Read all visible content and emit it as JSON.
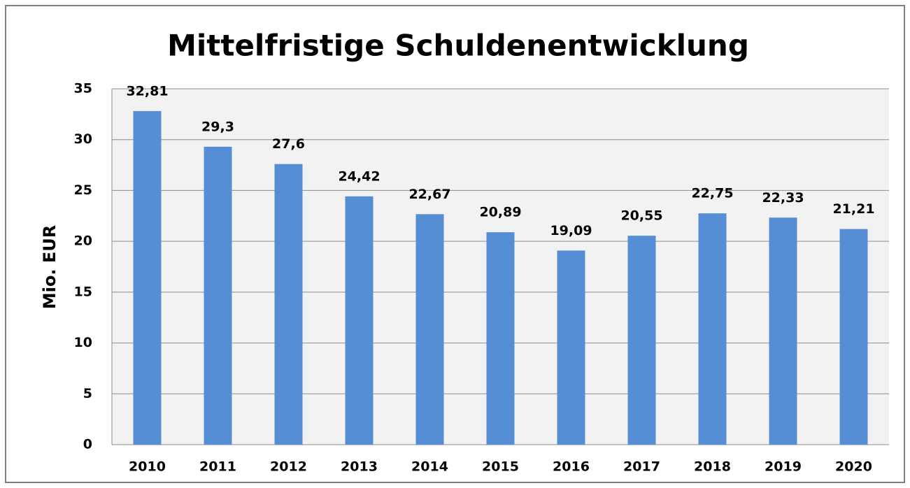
{
  "chart_data": {
    "type": "bar",
    "title": "Mittelfristige Schuldenentwicklung",
    "y_label": "Mio. EUR",
    "categories": [
      "2010",
      "2011",
      "2012",
      "2013",
      "2014",
      "2015",
      "2016",
      "2017",
      "2018",
      "2019",
      "2020"
    ],
    "values": [
      32.81,
      29.3,
      27.6,
      24.42,
      22.67,
      20.89,
      19.09,
      20.55,
      22.75,
      22.33,
      21.21
    ],
    "value_labels": [
      "32,81",
      "29,3",
      "27,6",
      "24,42",
      "22,67",
      "20,89",
      "19,09",
      "20,55",
      "22,75",
      "22,33",
      "21,21"
    ],
    "color": "#558ed5",
    "ylim": [
      0,
      35
    ],
    "yticks": [
      0,
      5,
      10,
      15,
      20,
      25,
      30,
      35
    ],
    "grid": true
  }
}
